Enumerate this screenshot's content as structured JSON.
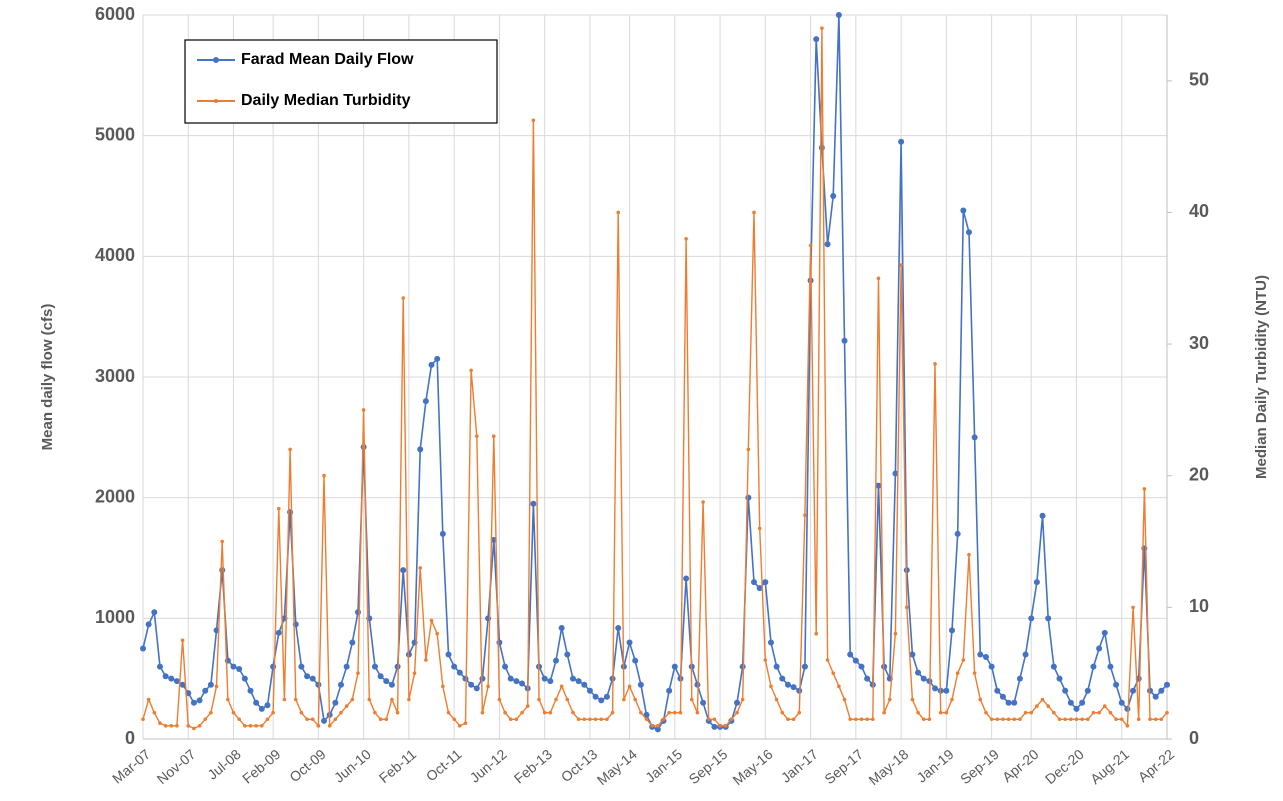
{
  "chart_data": {
    "type": "line",
    "legend": "upper left",
    "grid": true,
    "y_label": "Mean daily flow (cfs)",
    "y2_label": "Median Daily Turbidity (NTU)",
    "ylim": [
      0,
      6000
    ],
    "yticks": [
      0,
      1000,
      2000,
      3000,
      4000,
      5000,
      6000
    ],
    "y2lim": [
      0,
      55
    ],
    "y2ticks": [
      0,
      10,
      20,
      30,
      40,
      50
    ],
    "xticks": [
      "Mar-07",
      "Nov-07",
      "Jul-08",
      "Feb-09",
      "Oct-09",
      "Jun-10",
      "Feb-11",
      "Oct-11",
      "Jun-12",
      "Feb-13",
      "Oct-13",
      "May-14",
      "Jan-15",
      "Sep-15",
      "May-16",
      "Jan-17",
      "Sep-17",
      "May-18",
      "Jan-19",
      "Sep-19",
      "Apr-20",
      "Dec-20",
      "Aug-21",
      "Apr-22"
    ],
    "x": [
      "Mar-07",
      "Apr-07",
      "May-07",
      "Jun-07",
      "Jul-07",
      "Aug-07",
      "Sep-07",
      "Oct-07",
      "Nov-07",
      "Dec-07",
      "Jan-08",
      "Feb-08",
      "Mar-08",
      "Apr-08",
      "May-08",
      "Jun-08",
      "Jul-08",
      "Aug-08",
      "Sep-08",
      "Oct-08",
      "Nov-08",
      "Dec-08",
      "Jan-09",
      "Feb-09",
      "Mar-09",
      "Apr-09",
      "May-09",
      "Jun-09",
      "Jul-09",
      "Aug-09",
      "Sep-09",
      "Oct-09",
      "Nov-09",
      "Dec-09",
      "Jan-10",
      "Feb-10",
      "Mar-10",
      "Apr-10",
      "May-10",
      "Jun-10",
      "Jul-10",
      "Aug-10",
      "Sep-10",
      "Oct-10",
      "Nov-10",
      "Dec-10",
      "Jan-11",
      "Feb-11",
      "Mar-11",
      "Apr-11",
      "May-11",
      "Jun-11",
      "Jul-11",
      "Aug-11",
      "Sep-11",
      "Oct-11",
      "Nov-11",
      "Dec-11",
      "Jan-12",
      "Feb-12",
      "Mar-12",
      "Apr-12",
      "May-12",
      "Jun-12",
      "Jul-12",
      "Aug-12",
      "Sep-12",
      "Oct-12",
      "Nov-12",
      "Dec-12",
      "Jan-13",
      "Feb-13",
      "Mar-13",
      "Apr-13",
      "May-13",
      "Jun-13",
      "Jul-13",
      "Aug-13",
      "Sep-13",
      "Oct-13",
      "Nov-13",
      "Dec-13",
      "Jan-14",
      "Feb-14",
      "Mar-14",
      "Apr-14",
      "May-14",
      "Jun-14",
      "Jul-14",
      "Aug-14",
      "Sep-14",
      "Oct-14",
      "Nov-14",
      "Dec-14",
      "Jan-15",
      "Feb-15",
      "Mar-15",
      "Apr-15",
      "May-15",
      "Jun-15",
      "Jul-15",
      "Aug-15",
      "Sep-15",
      "Oct-15",
      "Nov-15",
      "Dec-15",
      "Jan-16",
      "Feb-16",
      "Mar-16",
      "Apr-16",
      "May-16",
      "Jun-16",
      "Jul-16",
      "Aug-16",
      "Sep-16",
      "Oct-16",
      "Nov-16",
      "Dec-16",
      "Jan-17",
      "Feb-17",
      "Mar-17",
      "Apr-17",
      "May-17",
      "Jun-17",
      "Jul-17",
      "Aug-17",
      "Sep-17",
      "Oct-17",
      "Nov-17",
      "Dec-17",
      "Jan-18",
      "Feb-18",
      "Mar-18",
      "Apr-18",
      "May-18",
      "Jun-18",
      "Jul-18",
      "Aug-18",
      "Sep-18",
      "Oct-18",
      "Nov-18",
      "Dec-18",
      "Jan-19",
      "Feb-19",
      "Mar-19",
      "Apr-19",
      "May-19",
      "Jun-19",
      "Jul-19",
      "Aug-19",
      "Sep-19",
      "Oct-19",
      "Nov-19",
      "Dec-19",
      "Jan-20",
      "Feb-20",
      "Mar-20",
      "Apr-20",
      "May-20",
      "Jun-20",
      "Jul-20",
      "Aug-20",
      "Sep-20",
      "Oct-20",
      "Nov-20",
      "Dec-20",
      "Jan-21",
      "Feb-21",
      "Mar-21",
      "Apr-21",
      "May-21",
      "Jun-21",
      "Jul-21",
      "Aug-21",
      "Sep-21",
      "Oct-21",
      "Nov-21",
      "Dec-21",
      "Jan-22",
      "Feb-22",
      "Mar-22",
      "Apr-22"
    ],
    "series": [
      {
        "name": "Farad Mean Daily Flow",
        "color": "#4472c4",
        "axis": "y",
        "values": [
          750,
          950,
          1050,
          600,
          520,
          500,
          480,
          450,
          380,
          300,
          320,
          400,
          450,
          900,
          1400,
          650,
          600,
          580,
          500,
          400,
          300,
          250,
          280,
          600,
          880,
          1000,
          1880,
          950,
          600,
          520,
          500,
          450,
          150,
          200,
          300,
          450,
          600,
          800,
          1050,
          2420,
          1000,
          600,
          520,
          480,
          450,
          600,
          1400,
          700,
          800,
          2400,
          2800,
          3100,
          3150,
          1700,
          700,
          600,
          550,
          500,
          450,
          420,
          500,
          1000,
          1650,
          800,
          600,
          500,
          480,
          460,
          420,
          1950,
          600,
          500,
          480,
          650,
          920,
          700,
          500,
          480,
          450,
          400,
          350,
          320,
          350,
          500,
          920,
          600,
          800,
          650,
          450,
          200,
          100,
          80,
          150,
          400,
          600,
          500,
          1330,
          600,
          450,
          300,
          150,
          100,
          100,
          100,
          150,
          300,
          600,
          2000,
          1300,
          1250,
          1300,
          800,
          600,
          500,
          450,
          430,
          400,
          600,
          3800,
          5800,
          4900,
          4100,
          4500,
          6000,
          3300,
          700,
          650,
          600,
          500,
          450,
          2100,
          600,
          500,
          2200,
          4950,
          1400,
          700,
          550,
          500,
          480,
          420,
          400,
          400,
          900,
          1700,
          4380,
          4200,
          2500,
          700,
          680,
          600,
          400,
          350,
          300,
          300,
          500,
          700,
          1000,
          1300,
          1850,
          1000,
          600,
          500,
          400,
          300,
          250,
          300,
          400,
          600,
          750,
          880,
          600,
          450,
          300,
          250,
          400,
          500,
          1580,
          400,
          350,
          400,
          450
        ]
      },
      {
        "name": "Daily Median Turbidity",
        "color": "#ed7d31",
        "axis": "y2",
        "values": [
          1.5,
          3,
          2,
          1.2,
          1,
          1,
          1,
          7.5,
          1,
          0.8,
          1,
          1.5,
          2,
          4,
          15,
          3,
          2,
          1.5,
          1,
          1,
          1,
          1,
          1.5,
          2,
          17.5,
          3,
          22,
          3,
          2,
          1.5,
          1.5,
          1,
          20,
          1,
          1.5,
          2,
          2.5,
          3,
          5,
          25,
          3,
          2,
          1.5,
          1.5,
          3,
          2,
          33.5,
          3,
          5,
          13,
          6,
          9,
          8,
          4,
          2,
          1.5,
          1,
          1.2,
          28,
          23,
          2,
          4,
          23,
          3,
          2,
          1.5,
          1.5,
          2,
          2.5,
          47,
          3,
          2,
          2,
          3,
          4,
          3,
          2,
          1.5,
          1.5,
          1.5,
          1.5,
          1.5,
          1.5,
          2,
          40,
          3,
          4,
          3,
          2,
          1.5,
          1,
          1,
          1.5,
          2,
          2,
          2,
          38,
          3,
          2,
          18,
          1.5,
          1.5,
          1,
          1,
          1.5,
          2,
          3,
          22,
          40,
          16,
          6,
          4,
          3,
          2,
          1.5,
          1.5,
          2,
          17,
          37.5,
          8,
          54,
          6,
          5,
          4,
          3,
          1.5,
          1.5,
          1.5,
          1.5,
          1.5,
          35,
          2,
          3,
          8,
          36,
          10,
          3,
          2,
          1.5,
          1.5,
          28.5,
          2,
          2,
          3,
          5,
          6,
          14,
          5,
          3,
          2,
          1.5,
          1.5,
          1.5,
          1.5,
          1.5,
          1.5,
          2,
          2,
          2.5,
          3,
          2.5,
          2,
          1.5,
          1.5,
          1.5,
          1.5,
          1.5,
          1.5,
          2,
          2,
          2.5,
          2,
          1.5,
          1.5,
          1,
          10,
          1.5,
          19,
          1.5,
          1.5,
          1.5,
          2
        ]
      }
    ]
  }
}
